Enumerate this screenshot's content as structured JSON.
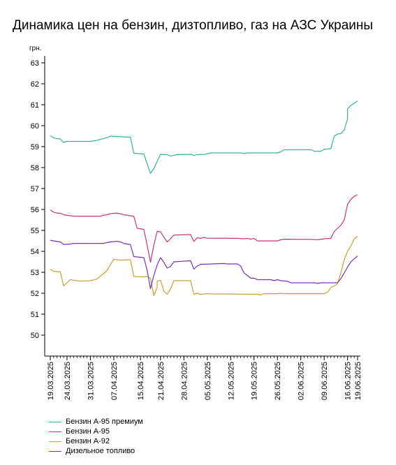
{
  "page": {
    "title": "Динамика цен на бензин, дизтопливо, газ на АЗС Украины"
  },
  "chart_data": {
    "type": "line",
    "title": "Динамика цен на бензин, дизтопливо, газ на АЗС Украины",
    "ylabel": "грн.",
    "xlabel": "",
    "ylim": [
      50,
      63
    ],
    "yticks": [
      50,
      51,
      52,
      53,
      54,
      55,
      56,
      57,
      58,
      59,
      60,
      61,
      62,
      63
    ],
    "grid": false,
    "legend": "bottom",
    "xtick_labels": [
      "19.03.2025",
      "24.03.2025",
      "31.03.2025",
      "07.04.2025",
      "15.04.2025",
      "21.04.2025",
      "28.04.2025",
      "05.05.2025",
      "12.05.2025",
      "19.05.2025",
      "26.05.2025",
      "02.06.2025",
      "09.06.2025",
      "16.06.2025",
      "19.06.2025"
    ],
    "series": [
      {
        "name": "Бензин А-95 премиум",
        "color": "#33b59b",
        "points": [
          [
            "19.03.2025",
            59.52
          ],
          [
            "20.03.2025",
            59.42
          ],
          [
            "21.03.2025",
            59.38
          ],
          [
            "22.03.2025",
            59.37
          ],
          [
            "23.03.2025",
            59.2
          ],
          [
            "24.03.2025",
            59.25
          ],
          [
            "25.03.2025",
            59.25
          ],
          [
            "31.03.2025",
            59.25
          ],
          [
            "02.04.2025",
            59.3
          ],
          [
            "05.04.2025",
            59.43
          ],
          [
            "06.04.2025",
            59.5
          ],
          [
            "08.04.2025",
            59.48
          ],
          [
            "09.04.2025",
            59.47
          ],
          [
            "12.04.2025",
            59.45
          ],
          [
            "13.04.2025",
            58.68
          ],
          [
            "16.04.2025",
            58.65
          ],
          [
            "18.04.2025",
            57.72
          ],
          [
            "19.04.2025",
            57.95
          ],
          [
            "20.04.2025",
            58.3
          ],
          [
            "21.04.2025",
            58.63
          ],
          [
            "23.04.2025",
            58.62
          ],
          [
            "24.04.2025",
            58.55
          ],
          [
            "26.04.2025",
            58.62
          ],
          [
            "30.04.2025",
            58.63
          ],
          [
            "01.05.2025",
            58.58
          ],
          [
            "02.05.2025",
            58.62
          ],
          [
            "04.05.2025",
            58.63
          ],
          [
            "05.05.2025",
            58.66
          ],
          [
            "06.05.2025",
            58.7
          ],
          [
            "15.05.2025",
            58.7
          ],
          [
            "16.05.2025",
            58.67
          ],
          [
            "17.05.2025",
            58.7
          ],
          [
            "26.05.2025",
            58.7
          ],
          [
            "27.05.2025",
            58.75
          ],
          [
            "28.05.2025",
            58.85
          ],
          [
            "05.06.2025",
            58.85
          ],
          [
            "06.06.2025",
            58.78
          ],
          [
            "08.06.2025",
            58.78
          ],
          [
            "09.06.2025",
            58.87
          ],
          [
            "11.06.2025",
            58.9
          ],
          [
            "12.06.2025",
            59.5
          ],
          [
            "13.06.2025",
            59.6
          ],
          [
            "14.06.2025",
            59.62
          ],
          [
            "15.06.2025",
            59.8
          ],
          [
            "16.06.2025",
            60.32
          ],
          [
            "16.06.2025",
            60.8
          ],
          [
            "17.06.2025",
            60.97
          ],
          [
            "18.06.2025",
            61.07
          ],
          [
            "19.06.2025",
            61.18
          ]
        ]
      },
      {
        "name": "Бензин А-95",
        "color": "#c8357a",
        "points": [
          [
            "19.03.2025",
            55.98
          ],
          [
            "20.03.2025",
            55.87
          ],
          [
            "21.03.2025",
            55.83
          ],
          [
            "22.03.2025",
            55.82
          ],
          [
            "23.03.2025",
            55.75
          ],
          [
            "24.03.2025",
            55.72
          ],
          [
            "26.03.2025",
            55.68
          ],
          [
            "03.04.2025",
            55.68
          ],
          [
            "04.04.2025",
            55.73
          ],
          [
            "05.04.2025",
            55.75
          ],
          [
            "06.04.2025",
            55.8
          ],
          [
            "08.04.2025",
            55.83
          ],
          [
            "10.04.2025",
            55.75
          ],
          [
            "12.04.2025",
            55.7
          ],
          [
            "13.04.2025",
            55.68
          ],
          [
            "14.04.2025",
            55.1
          ],
          [
            "16.04.2025",
            55.05
          ],
          [
            "17.04.2025",
            54.3
          ],
          [
            "18.04.2025",
            53.48
          ],
          [
            "19.04.2025",
            54.3
          ],
          [
            "20.04.2025",
            54.95
          ],
          [
            "21.04.2025",
            54.93
          ],
          [
            "22.04.2025",
            54.68
          ],
          [
            "23.04.2025",
            54.45
          ],
          [
            "24.04.2025",
            54.6
          ],
          [
            "25.04.2025",
            54.78
          ],
          [
            "30.04.2025",
            54.8
          ],
          [
            "01.05.2025",
            54.47
          ],
          [
            "02.05.2025",
            54.65
          ],
          [
            "03.05.2025",
            54.62
          ],
          [
            "04.05.2025",
            54.67
          ],
          [
            "05.05.2025",
            54.63
          ],
          [
            "14.05.2025",
            54.62
          ],
          [
            "16.05.2025",
            54.6
          ],
          [
            "17.05.2025",
            54.62
          ],
          [
            "18.05.2025",
            54.58
          ],
          [
            "19.05.2025",
            54.62
          ],
          [
            "20.05.2025",
            54.5
          ],
          [
            "26.05.2025",
            54.5
          ],
          [
            "27.05.2025",
            54.55
          ],
          [
            "28.05.2025",
            54.58
          ],
          [
            "05.06.2025",
            54.57
          ],
          [
            "07.06.2025",
            54.55
          ],
          [
            "09.06.2025",
            54.6
          ],
          [
            "11.06.2025",
            54.62
          ],
          [
            "12.06.2025",
            54.95
          ],
          [
            "13.06.2025",
            55.1
          ],
          [
            "14.06.2025",
            55.25
          ],
          [
            "15.06.2025",
            55.5
          ],
          [
            "16.06.2025",
            56.25
          ],
          [
            "17.06.2025",
            56.48
          ],
          [
            "18.06.2025",
            56.63
          ],
          [
            "19.06.2025",
            56.7
          ]
        ]
      },
      {
        "name": "Бензин А-92",
        "color": "#c8a032",
        "points": [
          [
            "19.03.2025",
            53.15
          ],
          [
            "20.03.2025",
            53.05
          ],
          [
            "22.03.2025",
            53.02
          ],
          [
            "23.03.2025",
            52.35
          ],
          [
            "24.03.2025",
            52.5
          ],
          [
            "25.03.2025",
            52.65
          ],
          [
            "26.03.2025",
            52.62
          ],
          [
            "28.03.2025",
            52.58
          ],
          [
            "31.03.2025",
            52.6
          ],
          [
            "02.04.2025",
            52.68
          ],
          [
            "04.04.2025",
            52.95
          ],
          [
            "05.04.2025",
            53.08
          ],
          [
            "06.04.2025",
            53.37
          ],
          [
            "07.04.2025",
            53.62
          ],
          [
            "09.04.2025",
            53.58
          ],
          [
            "11.04.2025",
            53.6
          ],
          [
            "12.04.2025",
            53.6
          ],
          [
            "13.04.2025",
            52.8
          ],
          [
            "16.04.2025",
            52.78
          ],
          [
            "17.04.2025",
            52.8
          ],
          [
            "18.04.2025",
            52.72
          ],
          [
            "19.04.2025",
            51.88
          ],
          [
            "20.04.2025",
            52.28
          ],
          [
            "20.04.2025",
            52.58
          ],
          [
            "21.04.2025",
            52.62
          ],
          [
            "22.04.2025",
            52.1
          ],
          [
            "23.04.2025",
            51.95
          ],
          [
            "24.04.2025",
            52.2
          ],
          [
            "25.04.2025",
            52.6
          ],
          [
            "26.04.2025",
            52.6
          ],
          [
            "30.04.2025",
            52.6
          ],
          [
            "01.05.2025",
            51.95
          ],
          [
            "02.05.2025",
            52.0
          ],
          [
            "03.05.2025",
            51.95
          ],
          [
            "05.05.2025",
            51.98
          ],
          [
            "06.05.2025",
            51.97
          ],
          [
            "20.05.2025",
            51.95
          ],
          [
            "21.05.2025",
            51.92
          ],
          [
            "22.05.2025",
            51.98
          ],
          [
            "26.05.2025",
            51.98
          ],
          [
            "27.05.2025",
            52.0
          ],
          [
            "28.05.2025",
            51.98
          ],
          [
            "09.06.2025",
            51.98
          ],
          [
            "10.06.2025",
            52.05
          ],
          [
            "11.06.2025",
            52.27
          ],
          [
            "12.06.2025",
            52.35
          ],
          [
            "13.06.2025",
            52.45
          ],
          [
            "14.06.2025",
            52.98
          ],
          [
            "15.06.2025",
            53.6
          ],
          [
            "16.06.2025",
            54.0
          ],
          [
            "17.06.2025",
            54.25
          ],
          [
            "18.06.2025",
            54.6
          ],
          [
            "19.06.2025",
            54.72
          ]
        ]
      },
      {
        "name": "Дизельное топливо",
        "color": "#7a2fc0",
        "points": [
          [
            "19.03.2025",
            54.53
          ],
          [
            "20.03.2025",
            54.5
          ],
          [
            "22.03.2025",
            54.45
          ],
          [
            "23.03.2025",
            54.33
          ],
          [
            "25.03.2025",
            54.35
          ],
          [
            "26.03.2025",
            54.38
          ],
          [
            "04.04.2025",
            54.38
          ],
          [
            "05.04.2025",
            54.42
          ],
          [
            "06.04.2025",
            54.45
          ],
          [
            "08.04.2025",
            54.48
          ],
          [
            "09.04.2025",
            54.45
          ],
          [
            "10.04.2025",
            54.38
          ],
          [
            "12.04.2025",
            54.32
          ],
          [
            "13.04.2025",
            53.75
          ],
          [
            "16.04.2025",
            53.7
          ],
          [
            "17.04.2025",
            53.1
          ],
          [
            "18.04.2025",
            52.22
          ],
          [
            "19.04.2025",
            52.85
          ],
          [
            "20.04.2025",
            53.35
          ],
          [
            "21.04.2025",
            53.7
          ],
          [
            "22.04.2025",
            53.48
          ],
          [
            "23.04.2025",
            53.2
          ],
          [
            "24.04.2025",
            53.28
          ],
          [
            "25.04.2025",
            53.5
          ],
          [
            "30.04.2025",
            53.55
          ],
          [
            "01.05.2025",
            53.15
          ],
          [
            "02.05.2025",
            53.3
          ],
          [
            "03.05.2025",
            53.38
          ],
          [
            "10.05.2025",
            53.42
          ],
          [
            "11.05.2025",
            53.4
          ],
          [
            "14.05.2025",
            53.4
          ],
          [
            "15.05.2025",
            53.3
          ],
          [
            "16.05.2025",
            52.97
          ],
          [
            "17.05.2025",
            52.85
          ],
          [
            "18.05.2025",
            52.72
          ],
          [
            "19.05.2025",
            52.72
          ],
          [
            "20.05.2025",
            52.65
          ],
          [
            "24.05.2025",
            52.65
          ],
          [
            "25.05.2025",
            52.6
          ],
          [
            "26.05.2025",
            52.65
          ],
          [
            "27.05.2025",
            52.6
          ],
          [
            "29.05.2025",
            52.57
          ],
          [
            "30.05.2025",
            52.5
          ],
          [
            "06.06.2025",
            52.5
          ],
          [
            "07.06.2025",
            52.47
          ],
          [
            "08.06.2025",
            52.5
          ],
          [
            "13.06.2025",
            52.5
          ],
          [
            "14.06.2025",
            52.7
          ],
          [
            "15.06.2025",
            52.97
          ],
          [
            "16.06.2025",
            53.25
          ],
          [
            "17.06.2025",
            53.5
          ],
          [
            "18.06.2025",
            53.65
          ],
          [
            "19.06.2025",
            53.78
          ]
        ]
      }
    ]
  }
}
